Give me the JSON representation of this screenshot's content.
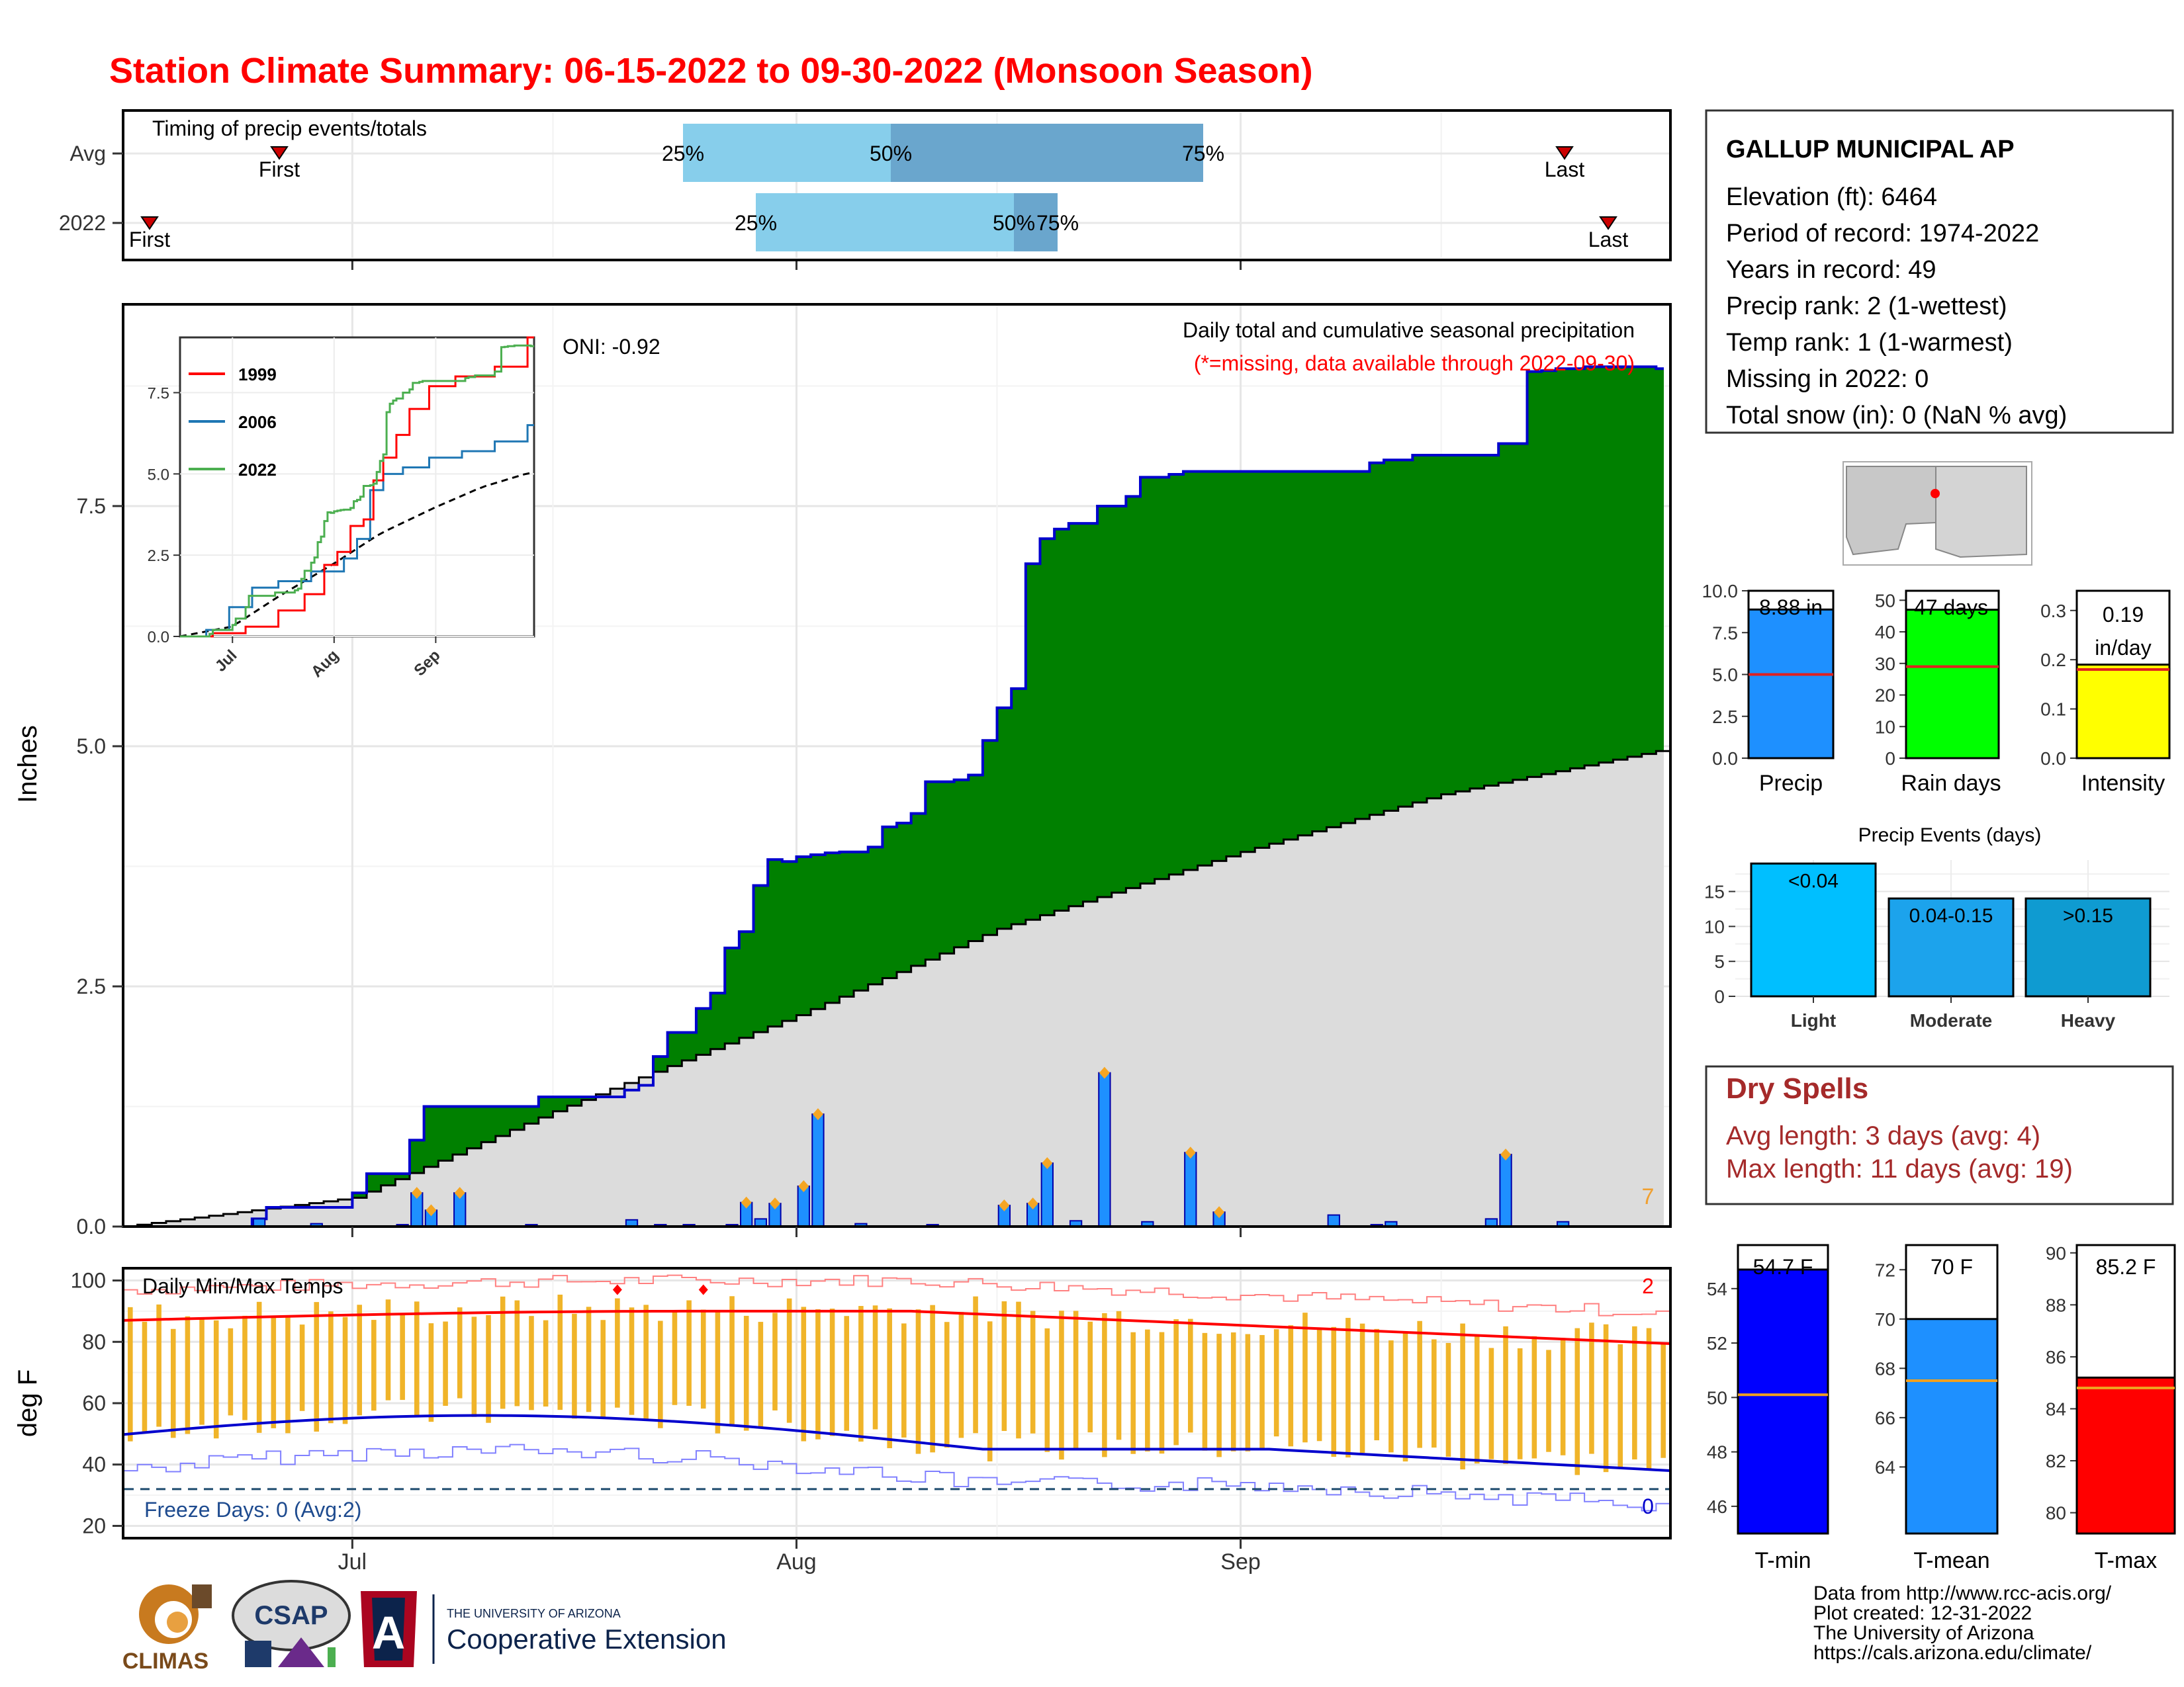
{
  "title": "Station Climate Summary: 06-15-2022 to 09-30-2022 (Monsoon Season)",
  "timing": {
    "label": "Timing of precip events/totals",
    "rows": [
      "Avg",
      "2022"
    ],
    "avg": {
      "first": "First",
      "last": "Last",
      "p25": "25%",
      "p50": "50%",
      "p75": "75%"
    },
    "y2022": {
      "first": "First",
      "last": "Last",
      "p25": "25%",
      "p50": "50%",
      "p75": "75%"
    }
  },
  "precip_panel": {
    "ylabel": "Inches",
    "oni": "ONI: -0.92",
    "header1": "Daily total and cumulative seasonal precipitation",
    "header2": "(*=missing, data available through 2022-09-30)",
    "count_label": "7",
    "y_ticks": [
      "0.0",
      "2.5",
      "5.0",
      "7.5"
    ],
    "x_ticks": [
      "Jul",
      "Aug",
      "Sep"
    ]
  },
  "inset": {
    "legend": [
      "1999",
      "2006",
      "2022"
    ],
    "y_ticks": [
      "0.0",
      "2.5",
      "5.0",
      "7.5"
    ],
    "x_ticks": [
      "Jul",
      "Aug",
      "Sep"
    ]
  },
  "temp_panel": {
    "ylabel": "deg F",
    "title": "Daily Min/Max Temps",
    "freeze": "Freeze Days: 0 (Avg:2)",
    "count_max": "2",
    "count_min": "0",
    "y_ticks": [
      "20",
      "40",
      "60",
      "80",
      "100"
    ],
    "x_ticks": [
      "Jul",
      "Aug",
      "Sep"
    ]
  },
  "station": {
    "name": "GALLUP MUNICIPAL AP",
    "lines": [
      "Elevation (ft): 6464",
      "Period of record: 1974-2022",
      "Years in record: 49",
      "Precip rank: 2 (1-wettest)",
      "Temp rank: 1 (1-warmest)",
      "Missing in 2022: 0",
      "Total snow (in): 0 (NaN % avg)"
    ]
  },
  "mini_bars": {
    "precip": {
      "label": "Precip",
      "value_text": "8.88 in",
      "ticks": [
        "0.0",
        "2.5",
        "5.0",
        "7.5",
        "10.0"
      ]
    },
    "raindays": {
      "label": "Rain days",
      "value_text": "47 days",
      "ticks": [
        "0",
        "10",
        "20",
        "30",
        "40",
        "50"
      ]
    },
    "intensity": {
      "label": "Intensity",
      "value_text1": "0.19",
      "value_text2": "in/day",
      "ticks": [
        "0.0",
        "0.1",
        "0.2",
        "0.3"
      ]
    }
  },
  "events": {
    "title": "Precip Events (days)",
    "cats": [
      "Light",
      "Moderate",
      "Heavy"
    ],
    "bar_labels": [
      "<0.04",
      "0.04-0.15",
      ">0.15"
    ],
    "ticks": [
      "0",
      "5",
      "10",
      "15"
    ]
  },
  "dry": {
    "title": "Dry Spells",
    "avg": "Avg length: 3 days (avg: 4)",
    "max": "Max length: 11 days (avg: 19)"
  },
  "temp_bars": {
    "tmin": {
      "label": "T-min",
      "value_text": "54.7 F",
      "ticks": [
        "46",
        "48",
        "50",
        "52",
        "54"
      ]
    },
    "tmean": {
      "label": "T-mean",
      "value_text": "70 F",
      "ticks": [
        "64",
        "66",
        "68",
        "70",
        "72"
      ]
    },
    "tmax": {
      "label": "T-max",
      "value_text": "85.2 F",
      "ticks": [
        "80",
        "82",
        "84",
        "86",
        "88",
        "90"
      ]
    }
  },
  "credits": [
    "Data from http://www.rcc-acis.org/",
    "Plot created: 12-31-2022",
    "The University of Arizona",
    "https://cals.arizona.edu/climate/"
  ],
  "logos": {
    "climas": "CLIMAS",
    "csap": "CSAP",
    "ua_small": "THE UNIVERSITY OF ARIZONA",
    "ua_big": "Cooperative Extension"
  },
  "colors": {
    "title": "#ff0000",
    "cumulative_fill": "#008000",
    "cumulative_line": "#0000cd",
    "average_fill": "#dcdcdc",
    "daily_bar": "#1e90ff",
    "temp_bar": "#f0b429",
    "tmax_line": "#ff0000",
    "tmin_line": "#0000cd",
    "dry_text": "#a52a2a"
  },
  "chart_data": [
    {
      "type": "area",
      "name": "cumulative precipitation",
      "x_dates": [
        "06-15",
        "06-24",
        "06-25",
        "07-01",
        "07-02",
        "07-05",
        "07-06",
        "07-14",
        "07-15",
        "07-20",
        "07-21",
        "07-22",
        "07-23",
        "07-25",
        "07-26",
        "07-27",
        "07-28",
        "07-29",
        "07-30",
        "07-31",
        "08-01",
        "08-02",
        "08-03",
        "08-04",
        "08-05",
        "08-06",
        "08-07",
        "08-08",
        "08-09",
        "08-10",
        "08-12",
        "08-13",
        "08-14",
        "08-15",
        "08-16",
        "08-17",
        "08-18",
        "08-19",
        "08-20",
        "08-22",
        "08-24",
        "08-25",
        "08-27",
        "08-28",
        "09-06",
        "09-10",
        "09-11",
        "09-13",
        "09-19",
        "09-21",
        "09-22",
        "09-23",
        "09-25",
        "09-30"
      ],
      "cumulative": [
        0.0,
        0.08,
        0.2,
        0.35,
        0.55,
        0.9,
        1.25,
        1.35,
        1.35,
        1.42,
        1.47,
        1.77,
        2.02,
        2.27,
        2.43,
        2.9,
        3.07,
        3.55,
        3.82,
        3.8,
        3.85,
        3.87,
        3.89,
        3.9,
        3.9,
        3.95,
        4.16,
        4.2,
        4.3,
        4.63,
        4.65,
        4.7,
        5.06,
        5.4,
        5.6,
        6.9,
        7.16,
        7.26,
        7.32,
        7.5,
        7.6,
        7.8,
        7.83,
        7.86,
        7.86,
        7.95,
        7.98,
        8.03,
        8.15,
        8.9,
        8.91,
        8.93,
        8.95,
        8.93
      ],
      "daily_totals": [
        {
          "date": "06-24",
          "value": 0.08
        },
        {
          "date": "06-28",
          "value": 0.03
        },
        {
          "date": "07-04",
          "value": 0.02
        },
        {
          "date": "07-05",
          "value": 0.35
        },
        {
          "date": "07-06",
          "value": 0.17
        },
        {
          "date": "07-08",
          "value": 0.35
        },
        {
          "date": "07-13",
          "value": 0.02
        },
        {
          "date": "07-20",
          "value": 0.07
        },
        {
          "date": "07-22",
          "value": 0.02
        },
        {
          "date": "07-24",
          "value": 0.02
        },
        {
          "date": "07-27",
          "value": 0.02
        },
        {
          "date": "07-28",
          "value": 0.25
        },
        {
          "date": "07-29",
          "value": 0.08
        },
        {
          "date": "07-30",
          "value": 0.24
        },
        {
          "date": "08-01",
          "value": 0.42
        },
        {
          "date": "08-02",
          "value": 1.17
        },
        {
          "date": "08-05",
          "value": 0.03
        },
        {
          "date": "08-10",
          "value": 0.02
        },
        {
          "date": "08-15",
          "value": 0.22
        },
        {
          "date": "08-17",
          "value": 0.24
        },
        {
          "date": "08-18",
          "value": 0.66
        },
        {
          "date": "08-20",
          "value": 0.06
        },
        {
          "date": "08-22",
          "value": 1.6
        },
        {
          "date": "08-25",
          "value": 0.05
        },
        {
          "date": "08-28",
          "value": 0.77
        },
        {
          "date": "08-30",
          "value": 0.15
        },
        {
          "date": "09-07",
          "value": 0.12
        },
        {
          "date": "09-10",
          "value": 0.02
        },
        {
          "date": "09-11",
          "value": 0.05
        },
        {
          "date": "09-18",
          "value": 0.08
        },
        {
          "date": "09-19",
          "value": 0.75
        },
        {
          "date": "09-23",
          "value": 0.05
        }
      ],
      "average_cumulative": {
        "x_dates": [
          "06-15",
          "07-01",
          "07-15",
          "08-01",
          "08-15",
          "09-01",
          "09-15",
          "09-30"
        ],
        "values": [
          0.0,
          0.3,
          1.2,
          2.2,
          3.1,
          3.9,
          4.5,
          4.95
        ]
      },
      "ylim": [
        0,
        9.6
      ],
      "ylabel": "Inches"
    },
    {
      "type": "bar",
      "name": "precip events",
      "categories": [
        "Light",
        "Moderate",
        "Heavy"
      ],
      "values": [
        19,
        14,
        14
      ]
    },
    {
      "type": "bar",
      "name": "season summary",
      "categories": [
        "Precip",
        "Rain days",
        "Intensity"
      ],
      "values": [
        8.88,
        47,
        0.19
      ],
      "average": [
        5.0,
        29,
        0.18
      ]
    },
    {
      "type": "bar",
      "name": "temperature summary",
      "categories": [
        "T-min",
        "T-mean",
        "T-max"
      ],
      "values": [
        54.7,
        70,
        85.2
      ],
      "average": [
        50.1,
        67.5,
        84.8
      ]
    }
  ]
}
